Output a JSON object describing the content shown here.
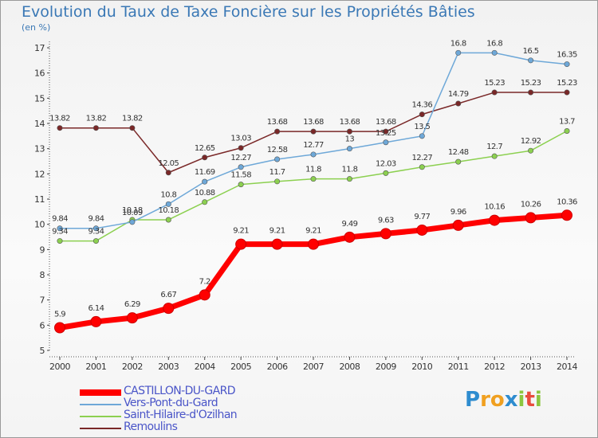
{
  "title": "Evolution du Taux de Taxe Foncière sur les Propriétés Bâties",
  "subtitle": "(en %)",
  "logo": {
    "letters": [
      "P",
      "r",
      "o",
      "x",
      "i",
      "t",
      "i"
    ],
    "colors": [
      "#2e8ccf",
      "#f0a020",
      "#f0a020",
      "#2e8ccf",
      "#8cc63f",
      "#e84c3d",
      "#8cc63f"
    ]
  },
  "chart_data": {
    "type": "line",
    "title": "Evolution du Taux de Taxe Foncière sur les Propriétés Bâties",
    "ylabel": "(en %)",
    "xlabel": "",
    "x": [
      "2000",
      "2001",
      "2002",
      "2003",
      "2004",
      "2005",
      "2006",
      "2007",
      "2008",
      "2009",
      "2010",
      "2011",
      "2012",
      "2013",
      "2014"
    ],
    "ylim": [
      5,
      17
    ],
    "yticks": [
      "5",
      "6",
      "7",
      "8",
      "9",
      "10",
      "11",
      "12",
      "13",
      "14",
      "15",
      "16",
      "17"
    ],
    "grid": false,
    "legend": "bottom-left",
    "series": [
      {
        "name": "CASTILLON-DU-GARD",
        "color": "#ff0000",
        "values": [
          5.9,
          6.14,
          6.29,
          6.67,
          7.2,
          9.21,
          9.21,
          9.21,
          9.49,
          9.63,
          9.77,
          9.96,
          10.16,
          10.26,
          10.36
        ],
        "labels": [
          "5.9",
          "6.14",
          "6.29",
          "6.67",
          "7.2",
          "9.21",
          "9.21",
          "9.21",
          "9.49",
          "9.63",
          "9.77",
          "9.96",
          "10.16",
          "10.26",
          "10.36"
        ]
      },
      {
        "name": "Vers-Pont-du-Gard",
        "color": "#6ea8d8",
        "values": [
          9.84,
          9.84,
          10.09,
          10.8,
          11.69,
          12.27,
          12.58,
          12.77,
          13.0,
          13.25,
          13.5,
          16.8,
          16.8,
          16.5,
          16.35
        ],
        "labels": [
          "9.84",
          "9.84",
          "10.09",
          "10.8",
          "11.69",
          "12.27",
          "12.58",
          "12.77",
          "13",
          "13.25",
          "13.5",
          "16.8",
          "16.8",
          "16.5",
          "16.35"
        ]
      },
      {
        "name": "Saint-Hilaire-d'Ozilhan",
        "color": "#8cd050",
        "values": [
          9.34,
          9.34,
          10.18,
          10.18,
          10.88,
          11.58,
          11.7,
          11.8,
          11.8,
          12.03,
          12.27,
          12.48,
          12.7,
          12.92,
          13.7
        ],
        "labels": [
          "9.34",
          "9.34",
          "10.18",
          "10.18",
          "10.88",
          "11.58",
          "11.7",
          "11.8",
          "11.8",
          "12.03",
          "12.27",
          "12.48",
          "12.7",
          "12.92",
          "13.7"
        ]
      },
      {
        "name": "Remoulins",
        "color": "#7a2828",
        "values": [
          13.82,
          13.82,
          13.82,
          12.05,
          12.65,
          13.03,
          13.68,
          13.68,
          13.68,
          13.68,
          14.36,
          14.79,
          15.23,
          15.23,
          15.23
        ],
        "labels": [
          "13.82",
          "13.82",
          "13.82",
          "12.05",
          "12.65",
          "13.03",
          "13.68",
          "13.68",
          "13.68",
          "13.68",
          "14.36",
          "14.79",
          "15.23",
          "15.23",
          "15.23"
        ]
      }
    ]
  }
}
